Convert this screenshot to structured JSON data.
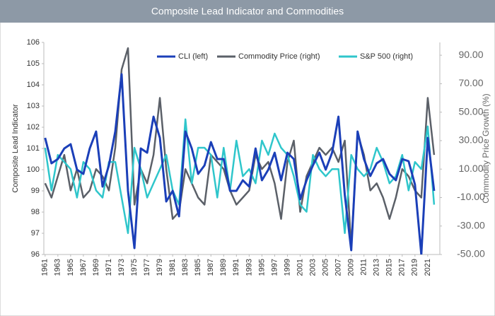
{
  "chart_data": {
    "type": "line",
    "title": "Composite Lead Indicator and Commodities",
    "y_label": "Composite Lead Indicator",
    "y2_label": "Commodity Price Growth (%)",
    "x": [
      1961,
      1962,
      1963,
      1964,
      1965,
      1966,
      1967,
      1968,
      1969,
      1970,
      1971,
      1972,
      1973,
      1974,
      1975,
      1976,
      1977,
      1978,
      1979,
      1980,
      1981,
      1982,
      1983,
      1984,
      1985,
      1986,
      1987,
      1988,
      1989,
      1990,
      1991,
      1992,
      1993,
      1994,
      1995,
      1996,
      1997,
      1998,
      1999,
      2000,
      2001,
      2002,
      2003,
      2004,
      2005,
      2006,
      2007,
      2008,
      2009,
      2010,
      2011,
      2012,
      2013,
      2014,
      2015,
      2016,
      2017,
      2018,
      2019,
      2020,
      2021,
      2022
    ],
    "xlim": [
      1960.8,
      2022.9
    ],
    "xticks": [
      1961,
      1963,
      1965,
      1967,
      1969,
      1971,
      1973,
      1975,
      1977,
      1979,
      1981,
      1983,
      1985,
      1987,
      1989,
      1991,
      1993,
      1995,
      1997,
      1999,
      2001,
      2003,
      2005,
      2007,
      2009,
      2011,
      2013,
      2015,
      2017,
      2019,
      2021
    ],
    "ylim": [
      96,
      106
    ],
    "yticks": [
      96,
      97,
      98,
      99,
      100,
      101,
      102,
      103,
      104,
      105,
      106
    ],
    "y2lim": [
      -50,
      99
    ],
    "y2ticks": [
      {
        "value": -50,
        "label": "-50.00"
      },
      {
        "value": -30,
        "label": "-30.00"
      },
      {
        "value": -10,
        "label": "-10.00"
      },
      {
        "value": 10,
        "label": "10.00"
      },
      {
        "value": 30,
        "label": "30.00"
      },
      {
        "value": 50,
        "label": "50.00"
      },
      {
        "value": 70,
        "label": "70.00"
      },
      {
        "value": 90,
        "label": "90.00"
      }
    ],
    "series": [
      {
        "name": "CLI (left)",
        "color": "#1b3fb8",
        "axis": "y",
        "values": [
          101.5,
          100.3,
          100.5,
          101.0,
          101.2,
          100.0,
          99.8,
          101.0,
          101.8,
          99.2,
          100.2,
          101.8,
          104.5,
          99.0,
          96.3,
          101.0,
          100.8,
          102.5,
          101.5,
          98.5,
          99.0,
          97.8,
          101.8,
          101.0,
          99.8,
          100.2,
          101.3,
          100.5,
          100.5,
          99.0,
          99.0,
          99.5,
          99.2,
          101.0,
          99.5,
          100.0,
          100.8,
          99.5,
          100.8,
          100.5,
          98.6,
          99.5,
          100.2,
          100.8,
          100.0,
          100.8,
          102.5,
          98.8,
          96.2,
          101.8,
          100.5,
          99.7,
          100.3,
          100.5,
          99.8,
          99.5,
          100.5,
          100.4,
          99.3,
          96.0,
          101.5,
          99.0
        ]
      },
      {
        "name": "Commodity Price (right)",
        "color": "#5b6068",
        "axis": "y2",
        "values": [
          0,
          -10,
          5,
          20,
          -5,
          10,
          -10,
          -5,
          10,
          5,
          -5,
          25,
          80,
          95,
          -15,
          10,
          0,
          20,
          60,
          10,
          -25,
          -20,
          10,
          0,
          -10,
          -15,
          20,
          15,
          10,
          -5,
          -15,
          -10,
          -5,
          20,
          10,
          15,
          0,
          -25,
          15,
          30,
          -20,
          5,
          15,
          25,
          20,
          25,
          15,
          30,
          -45,
          35,
          20,
          -5,
          0,
          -10,
          -25,
          -10,
          10,
          5,
          -5,
          -10,
          60,
          20
        ]
      },
      {
        "name": "S&P 500 (right)",
        "color": "#2fc6cb",
        "axis": "y2",
        "values": [
          25,
          -5,
          20,
          15,
          10,
          -10,
          15,
          10,
          -5,
          -10,
          15,
          15,
          -10,
          -35,
          25,
          10,
          -10,
          0,
          10,
          20,
          -5,
          -15,
          45,
          0,
          25,
          25,
          20,
          -10,
          25,
          -5,
          30,
          5,
          10,
          0,
          30,
          20,
          35,
          25,
          20,
          5,
          -15,
          -20,
          20,
          10,
          5,
          10,
          10,
          -35,
          20,
          10,
          5,
          10,
          25,
          15,
          0,
          5,
          20,
          -5,
          15,
          10,
          40,
          -15
        ]
      }
    ]
  }
}
